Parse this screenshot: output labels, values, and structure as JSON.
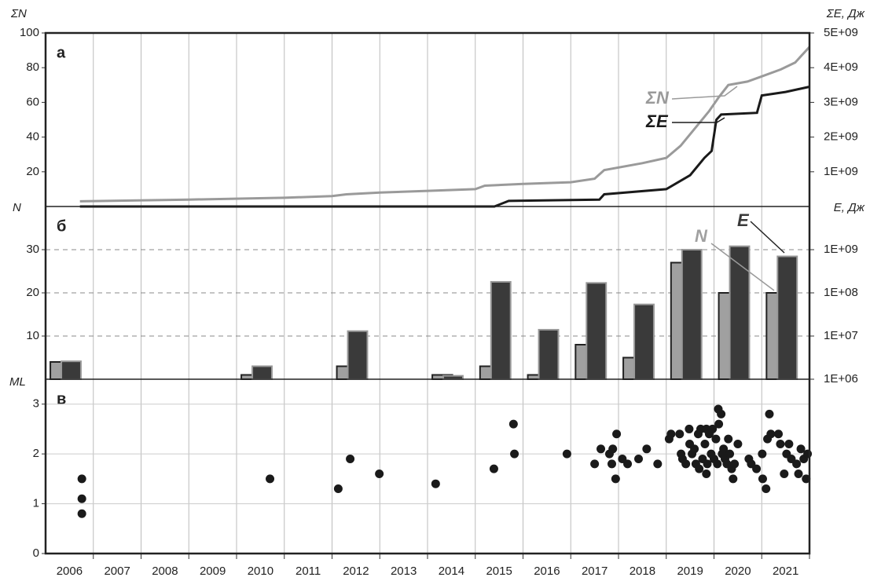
{
  "chart_data": [
    {
      "type": "line",
      "panel_label": "а",
      "ylabel": "ΣN",
      "y2label": "ΣE, Дж",
      "xlim": [
        2006,
        2022
      ],
      "ylim": [
        0,
        100
      ],
      "yticks": [
        20,
        40,
        60,
        80,
        100
      ],
      "y2lim": [
        0,
        5000000000
      ],
      "y2ticks": [
        {
          "value": 1000000000,
          "label": "1E+09"
        },
        {
          "value": 2000000000,
          "label": "2E+09"
        },
        {
          "value": 3000000000,
          "label": "3E+09"
        },
        {
          "value": 4000000000,
          "label": "4E+09"
        },
        {
          "value": 5000000000,
          "label": "5E+09"
        }
      ],
      "series": [
        {
          "name": "ΣN",
          "color": "#9a9a9a",
          "x": [
            2006.72,
            2009,
            2011,
            2012.0,
            2012.3,
            2013.0,
            2014,
            2015.0,
            2015.2,
            2016,
            2017.0,
            2017.5,
            2017.7,
            2018.5,
            2019.0,
            2019.3,
            2019.6,
            2019.9,
            2020.1,
            2020.3,
            2020.7,
            2021.0,
            2021.4,
            2021.7,
            2022.0
          ],
          "values": [
            3,
            4,
            5,
            6,
            7,
            8,
            9,
            10,
            12,
            13,
            14,
            16,
            21,
            25,
            28,
            35,
            45,
            55,
            63,
            70,
            72,
            75,
            79,
            83,
            92
          ]
        },
        {
          "name": "ΣE",
          "color": "#1a1a1a",
          "axis": "y2",
          "x": [
            2006.72,
            2015.4,
            2015.7,
            2017.6,
            2017.7,
            2019.0,
            2019.5,
            2019.8,
            2019.95,
            2020.05,
            2020.15,
            2020.9,
            2021.0,
            2021.5,
            2022.0
          ],
          "values": [
            0,
            0,
            160000000,
            200000000,
            350000000,
            500000000,
            900000000,
            1400000000,
            1600000000,
            2500000000,
            2650000000,
            2700000000,
            3200000000,
            3300000000,
            3450000000
          ]
        }
      ]
    },
    {
      "type": "bar",
      "panel_label": "б",
      "ylabel": "N",
      "y2label": "E, Дж",
      "categories": [
        "2006",
        "2007",
        "2008",
        "2009",
        "2010",
        "2011",
        "2012",
        "2013",
        "2014",
        "2015",
        "2016",
        "2017",
        "2018",
        "2019",
        "2020",
        "2021"
      ],
      "ylim": [
        0,
        40
      ],
      "yticks": [
        10,
        20,
        30
      ],
      "grid": "dashed",
      "y2log": true,
      "y2lim": [
        1000000,
        10000000000
      ],
      "y2ticks": [
        {
          "value": 1000000,
          "label": "1E+06"
        },
        {
          "value": 10000000,
          "label": "1E+07"
        },
        {
          "value": 100000000,
          "label": "1E+08"
        },
        {
          "value": 1000000000,
          "label": "1E+09"
        }
      ],
      "series": [
        {
          "name": "N",
          "color": "#a0a0a0",
          "values": [
            4,
            0,
            0,
            0,
            1,
            0,
            3,
            0,
            1,
            3,
            1,
            8,
            5,
            27,
            20,
            20
          ]
        },
        {
          "name": "E",
          "color": "#3a3a3a",
          "axis": "y2",
          "values": [
            2600000,
            null,
            null,
            null,
            2000000,
            null,
            13000000,
            null,
            1200000,
            180000000,
            14000000,
            170000000,
            54000000,
            1000000000,
            1200000000,
            700000000
          ]
        }
      ]
    },
    {
      "type": "scatter",
      "panel_label": "в",
      "ylabel": "ML",
      "color": "#1a1a1a",
      "xlim": [
        2006,
        2022
      ],
      "ylim": [
        0,
        3.5
      ],
      "yticks": [
        0,
        1,
        2,
        3
      ],
      "grid": "solid",
      "x": [
        2006.76,
        2006.76,
        2006.76,
        2010.7,
        2012.13,
        2012.38,
        2012.99,
        2014.17,
        2015.39,
        2015.8,
        2015.82,
        2016.92,
        2017.5,
        2017.63,
        2017.81,
        2017.86,
        2017.88,
        2017.96,
        2017.94,
        2018.08,
        2018.19,
        2018.42,
        2018.59,
        2018.82,
        2019.06,
        2019.1,
        2019.28,
        2019.31,
        2019.34,
        2019.41,
        2019.48,
        2019.49,
        2019.54,
        2019.59,
        2019.62,
        2019.67,
        2019.69,
        2019.72,
        2019.76,
        2019.81,
        2019.84,
        2019.86,
        2019.9,
        2019.84,
        2019.94,
        2019.97,
        2020.0,
        2020.04,
        2020.07,
        2020.09,
        2020.1,
        2020.15,
        2020.17,
        2020.2,
        2020.23,
        2020.27,
        2020.3,
        2020.33,
        2020.37,
        2020.4,
        2020.43,
        2020.5,
        2020.73,
        2020.78,
        2020.89,
        2021.01,
        2021.02,
        2021.09,
        2021.12,
        2021.16,
        2021.19,
        2021.35,
        2021.39,
        2021.47,
        2021.52,
        2021.57,
        2021.62,
        2021.73,
        2021.77,
        2021.82,
        2021.88,
        2021.93,
        2021.96
      ],
      "values": [
        1.5,
        1.1,
        0.8,
        1.5,
        1.3,
        1.9,
        1.6,
        1.4,
        1.7,
        2.6,
        2.0,
        2.0,
        1.8,
        2.1,
        2.0,
        1.8,
        2.1,
        2.4,
        1.5,
        1.9,
        1.8,
        1.9,
        2.1,
        1.8,
        2.3,
        2.4,
        2.4,
        2.0,
        1.9,
        1.8,
        2.5,
        2.2,
        2.0,
        2.1,
        1.8,
        2.4,
        1.7,
        2.5,
        1.9,
        2.2,
        2.5,
        1.8,
        2.4,
        1.6,
        2.0,
        2.5,
        1.9,
        2.3,
        1.8,
        2.9,
        2.6,
        2.8,
        2.0,
        2.1,
        1.9,
        1.8,
        2.3,
        2.0,
        1.7,
        1.5,
        1.8,
        2.2,
        1.9,
        1.8,
        1.7,
        2.0,
        1.5,
        1.3,
        2.3,
        2.8,
        2.4,
        2.4,
        2.2,
        1.6,
        2.0,
        2.2,
        1.9,
        1.8,
        1.6,
        2.1,
        1.9,
        1.5,
        2.0
      ]
    }
  ]
}
